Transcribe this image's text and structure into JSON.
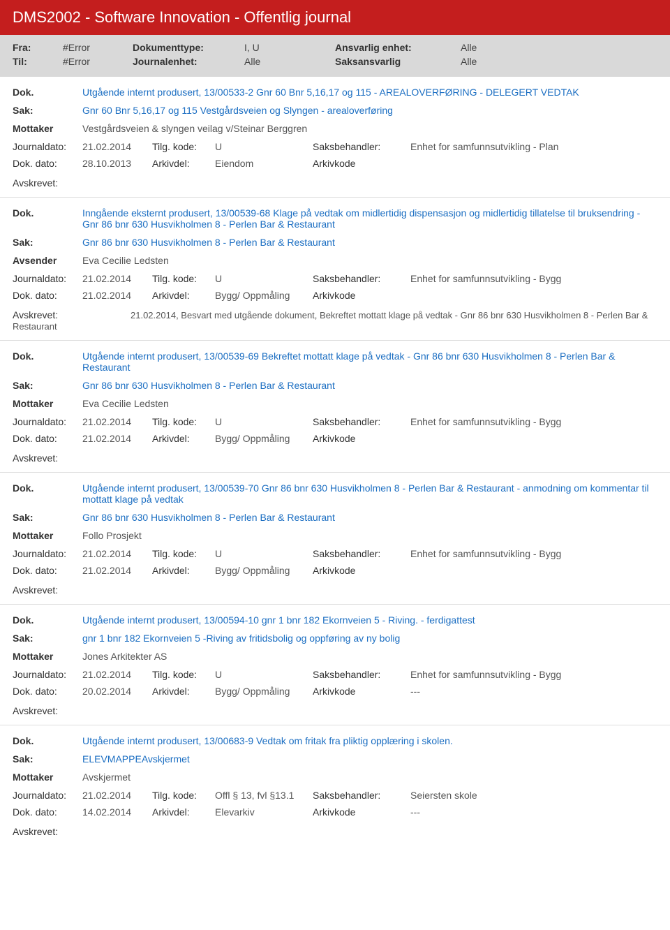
{
  "header": {
    "title": "DMS2002 - Software Innovation - Offentlig journal",
    "fra_label": "Fra:",
    "fra_value": "#Error",
    "til_label": "Til:",
    "til_value": "#Error",
    "doktype_label": "Dokumenttype:",
    "doktype_value": "I, U",
    "journalenhet_label": "Journalenhet:",
    "journalenhet_value": "Alle",
    "ansvarlig_label": "Ansvarlig enhet:",
    "ansvarlig_value": "Alle",
    "saksansvarlig_label": "Saksansvarlig",
    "saksansvarlig_value": "Alle"
  },
  "labels": {
    "dok": "Dok.",
    "sak": "Sak:",
    "mottaker": "Mottaker",
    "avsender": "Avsender",
    "journaldato": "Journaldato:",
    "dokdato": "Dok. dato:",
    "tilgkode": "Tilg. kode:",
    "arkivdel": "Arkivdel:",
    "saksbehandler": "Saksbehandler:",
    "arkivkode": "Arkivkode",
    "avskrevet": "Avskrevet:"
  },
  "entries": [
    {
      "dok": "Utgående internt produsert, 13/00533-2 Gnr 60 Bnr 5,16,17 og 115 - AREALOVERFØRING - DELEGERT VEDTAK",
      "sak": "Gnr 60 Bnr 5,16,17 og 115 Vestgårdsveien og Slyngen - arealoverføring",
      "party_label": "Mottaker",
      "party": "Vestgårdsveien & slyngen veilag v/Steinar Berggren",
      "jd": "21.02.2014",
      "dd": "28.10.2013",
      "tk": "U",
      "ad": "Eiendom",
      "sb": "Enhet for samfunnsutvikling - Plan",
      "ak": "",
      "avs": ""
    },
    {
      "dok": "Inngående eksternt produsert, 13/00539-68 Klage på vedtak om midlertidig dispensasjon og midlertidig tillatelse til bruksendring - Gnr 86 bnr 630 Husvikholmen 8 - Perlen Bar & Restaurant",
      "sak": "Gnr 86 bnr 630 Husvikholmen 8 - Perlen Bar & Restaurant",
      "party_label": "Avsender",
      "party": "Eva Cecilie Ledsten",
      "jd": "21.02.2014",
      "dd": "21.02.2014",
      "tk": "U",
      "ad": "Bygg/ Oppmåling",
      "sb": "Enhet for samfunnsutvikling - Bygg",
      "ak": "",
      "avs": "21.02.2014, Besvart med utgående dokument, Bekreftet mottatt klage på vedtak -  Gnr 86 bnr 630 Husvikholmen 8 - Perlen Bar & Restaurant"
    },
    {
      "dok": "Utgående internt produsert, 13/00539-69 Bekreftet mottatt klage på vedtak -  Gnr 86 bnr 630 Husvikholmen 8 - Perlen Bar & Restaurant",
      "sak": "Gnr 86 bnr 630 Husvikholmen 8 - Perlen Bar & Restaurant",
      "party_label": "Mottaker",
      "party": "Eva Cecilie Ledsten",
      "jd": "21.02.2014",
      "dd": "21.02.2014",
      "tk": "U",
      "ad": "Bygg/ Oppmåling",
      "sb": "Enhet for samfunnsutvikling - Bygg",
      "ak": "",
      "avs": ""
    },
    {
      "dok": "Utgående internt produsert, 13/00539-70 Gnr 86 bnr 630 Husvikholmen 8 - Perlen Bar & Restaurant - anmodning om kommentar til mottatt klage på vedtak",
      "sak": "Gnr 86 bnr 630 Husvikholmen 8 - Perlen Bar & Restaurant",
      "party_label": "Mottaker",
      "party": "Follo Prosjekt",
      "jd": "21.02.2014",
      "dd": "21.02.2014",
      "tk": "U",
      "ad": "Bygg/ Oppmåling",
      "sb": "Enhet for samfunnsutvikling - Bygg",
      "ak": "",
      "avs": ""
    },
    {
      "dok": "Utgående internt produsert, 13/00594-10 gnr 1 bnr 182 Ekornveien 5 - Riving. - ferdigattest",
      "sak": "gnr 1 bnr 182 Ekornveien 5 -Riving av fritidsbolig og oppføring av ny bolig",
      "party_label": "Mottaker",
      "party": "Jones Arkitekter AS",
      "jd": "21.02.2014",
      "dd": "20.02.2014",
      "tk": "U",
      "ad": "Bygg/ Oppmåling",
      "sb": "Enhet for samfunnsutvikling - Bygg",
      "ak": "---",
      "avs": ""
    },
    {
      "dok": "Utgående internt produsert, 13/00683-9 Vedtak om fritak fra pliktig opplæring i skolen.",
      "sak": "ELEVMAPPEAvskjermet",
      "party_label": "Mottaker",
      "party": "Avskjermet",
      "jd": "21.02.2014",
      "dd": "14.02.2014",
      "tk": "Offl § 13, fvl §13.1",
      "ad": "Elevarkiv",
      "sb": "Seiersten skole",
      "ak": "---",
      "avs": ""
    }
  ]
}
